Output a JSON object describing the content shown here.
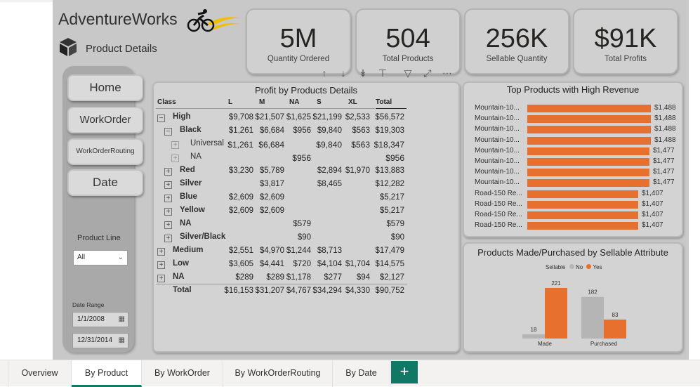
{
  "brand": {
    "name": "AdventureWorks",
    "page_title": "Product Details"
  },
  "kpis": [
    {
      "value": "5M",
      "label": "Quantity Ordered"
    },
    {
      "value": "504",
      "label": "Total Products"
    },
    {
      "value": "256K",
      "label": "Sellable Quantity"
    },
    {
      "value": "$91K",
      "label": "Total Profits"
    }
  ],
  "nav": {
    "home": "Home",
    "workorder": "WorkOrder",
    "routing": "WorkOrderRouting",
    "date": "Date"
  },
  "slicers": {
    "product_line_label": "Product Line",
    "product_line_value": "All",
    "date_range_label": "Date Range",
    "date_start": "1/1/2008",
    "date_end": "12/31/2014"
  },
  "matrix": {
    "title": "Profit by Products Details",
    "headers": [
      "Class",
      "L",
      "M",
      "NA",
      "S",
      "XL",
      "Total"
    ],
    "rows": [
      {
        "name": "High",
        "L": "$9,708",
        "M": "$21,507",
        "NA": "$1,625",
        "S": "$21,199",
        "XL": "$2,533",
        "Total": "$56,572"
      },
      {
        "name": "Black",
        "L": "$1,261",
        "M": "$6,684",
        "NA": "$956",
        "S": "$9,840",
        "XL": "$563",
        "Total": "$19,303"
      },
      {
        "name": "Universal",
        "L": "$1,261",
        "M": "$6,684",
        "NA": "",
        "S": "$9,840",
        "XL": "$563",
        "Total": "$18,347"
      },
      {
        "name": "NA",
        "L": "",
        "M": "",
        "NA": "$956",
        "S": "",
        "XL": "",
        "Total": "$956"
      },
      {
        "name": "Red",
        "L": "$3,230",
        "M": "$5,789",
        "NA": "",
        "S": "$2,894",
        "XL": "$1,970",
        "Total": "$13,883"
      },
      {
        "name": "Silver",
        "L": "",
        "M": "$3,817",
        "NA": "",
        "S": "$8,465",
        "XL": "",
        "Total": "$12,282"
      },
      {
        "name": "Blue",
        "L": "$2,609",
        "M": "$2,609",
        "NA": "",
        "S": "",
        "XL": "",
        "Total": "$5,217"
      },
      {
        "name": "Yellow",
        "L": "$2,609",
        "M": "$2,609",
        "NA": "",
        "S": "",
        "XL": "",
        "Total": "$5,217"
      },
      {
        "name": "NA",
        "L": "",
        "M": "",
        "NA": "$579",
        "S": "",
        "XL": "",
        "Total": "$579"
      },
      {
        "name": "Silver/Black",
        "L": "",
        "M": "",
        "NA": "$90",
        "S": "",
        "XL": "",
        "Total": "$90"
      },
      {
        "name": "Medium",
        "L": "$2,551",
        "M": "$4,970",
        "NA": "$1,244",
        "S": "$8,713",
        "XL": "",
        "Total": "$17,479"
      },
      {
        "name": "Low",
        "L": "$3,605",
        "M": "$4,441",
        "NA": "$720",
        "S": "$4,104",
        "XL": "$1,704",
        "Total": "$14,575"
      },
      {
        "name": "NA",
        "L": "$289",
        "M": "$289",
        "NA": "$1,178",
        "S": "$277",
        "XL": "$94",
        "Total": "$2,127"
      },
      {
        "name": "Total",
        "L": "$16,153",
        "M": "$31,207",
        "NA": "$4,767",
        "S": "$34,294",
        "XL": "$4,330",
        "Total": "$90,752"
      }
    ]
  },
  "top_products": {
    "title": "Top Products with High Revenue",
    "labels": [
      "Mountain-10...",
      "Mountain-10...",
      "Mountain-10...",
      "Mountain-10...",
      "Mountain-10...",
      "Mountain-10...",
      "Mountain-10...",
      "Mountain-10...",
      "Road-150 Re...",
      "Road-150 Re...",
      "Road-150 Re...",
      "Road-150 Re..."
    ],
    "value_labels": [
      "$1,488",
      "$1,488",
      "$1,488",
      "$1,488",
      "$1,477",
      "$1,477",
      "$1,477",
      "$1,477",
      "$1,407",
      "$1,407",
      "$1,407",
      "$1,407"
    ]
  },
  "sellable": {
    "title": "Products Made/Purchased by Sellable Attribute",
    "legend_title": "Sellable",
    "legend_no": "No",
    "legend_yes": "Yes"
  },
  "tabs": [
    "Overview",
    "By Product",
    "By WorkOrder",
    "By WorkOrderRouting",
    "By Date"
  ],
  "add_tab": "+",
  "colors": {
    "accent_orange": "#e8702f",
    "gray_bar": "#b5b5b5",
    "tab_green": "#117865"
  },
  "chart_data": [
    {
      "type": "bar",
      "orientation": "horizontal",
      "title": "Top Products with High Revenue",
      "categories": [
        "Mountain-10...",
        "Mountain-10...",
        "Mountain-10...",
        "Mountain-10...",
        "Mountain-10...",
        "Mountain-10...",
        "Mountain-10...",
        "Mountain-10...",
        "Road-150 Re...",
        "Road-150 Re...",
        "Road-150 Re...",
        "Road-150 Re..."
      ],
      "values": [
        1488,
        1488,
        1488,
        1488,
        1477,
        1477,
        1477,
        1477,
        1407,
        1407,
        1407,
        1407
      ],
      "xlim": [
        0,
        1488
      ]
    },
    {
      "type": "bar",
      "title": "Products Made/Purchased by Sellable Attribute",
      "categories": [
        "Made",
        "Purchased"
      ],
      "series": [
        {
          "name": "No",
          "values": [
            18,
            182
          ]
        },
        {
          "name": "Yes",
          "values": [
            221,
            83
          ]
        }
      ],
      "ylim": [
        0,
        221
      ],
      "legend": "top-center"
    }
  ]
}
